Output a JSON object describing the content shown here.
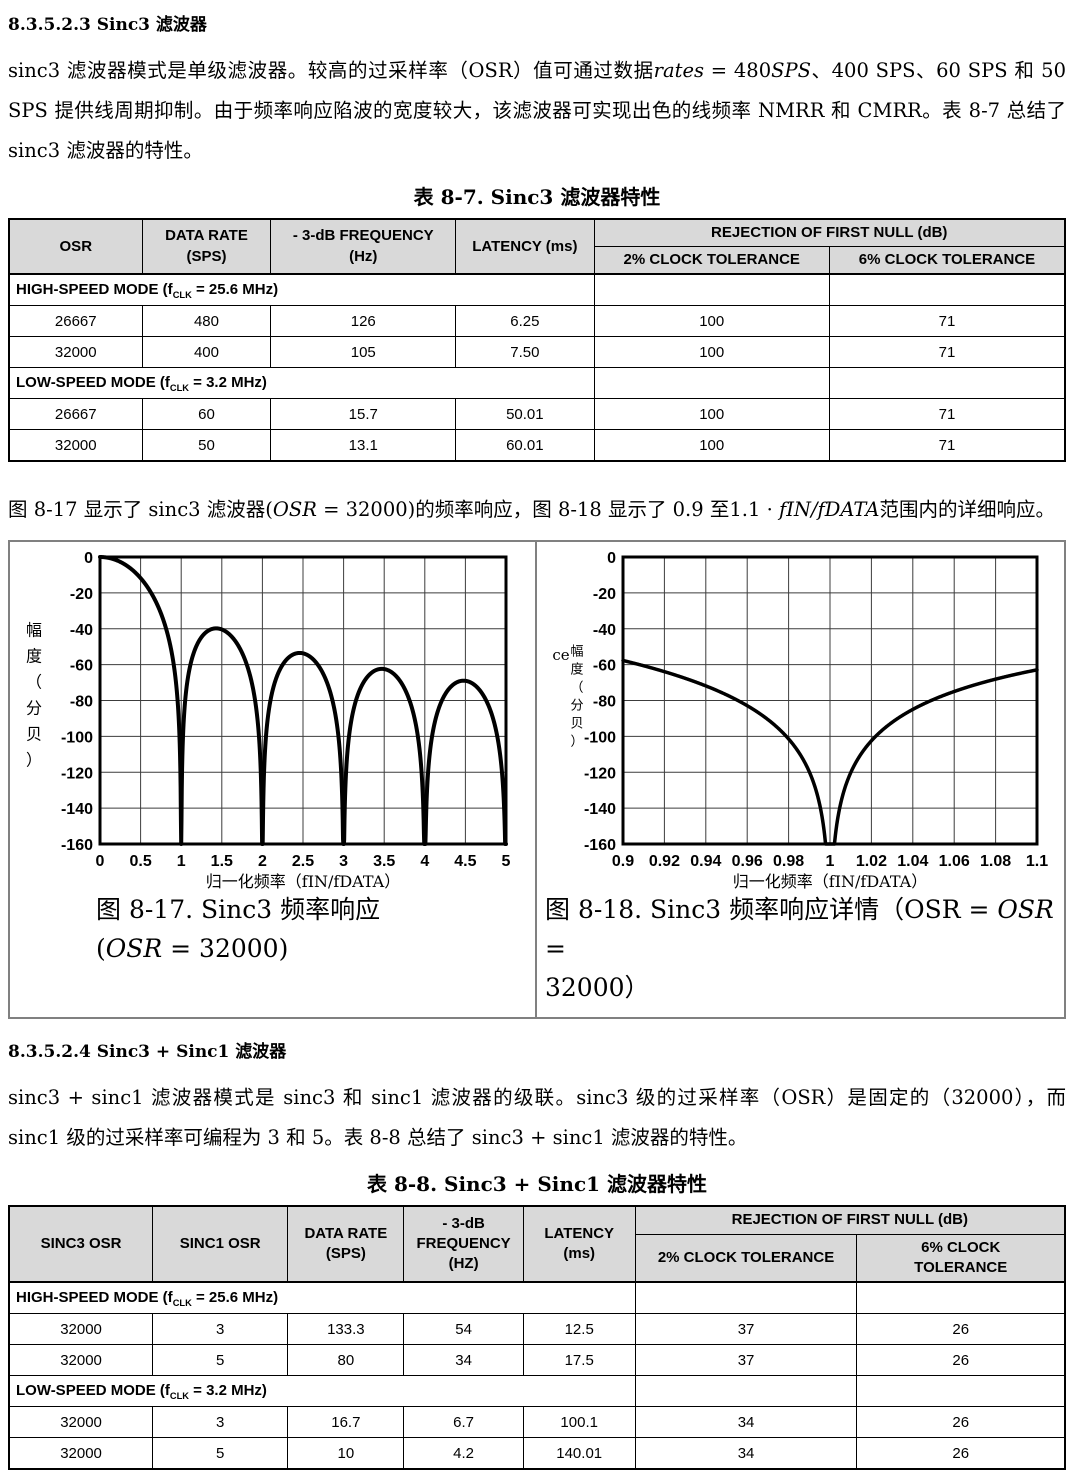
{
  "section1": {
    "heading": "8.3.5.2.3 Sinc3 滤波器",
    "para_runs": [
      {
        "t": "sinc3 滤波器模式是单级滤波器。较高的过采样率（OSR）值可通过数据"
      },
      {
        "t": "rates",
        "style": "i"
      },
      {
        "t": " = 480"
      },
      {
        "t": "SPS",
        "style": "i"
      },
      {
        "t": "、400 SPS、60 SPS 和 50 SPS 提供线周期抑制。由于频率响应陷波的宽度较大，该滤波器可实现出色的线频率 NMRR 和 CMRR。表 8-7 总结了 sinc3 滤波器的特性。"
      }
    ]
  },
  "section2": {
    "heading": "8.3.5.2.4 Sinc3 + Sinc1 滤波器",
    "para_runs": [
      {
        "t": "sinc3 + sinc1 滤波器模式是 sinc3 和 sinc1 滤波器的级联。sinc3 级的过采样率（OSR）是固定的（32000），而 sinc1 级的过采样率可编程为 3 和 5。表 8-8 总结了 sinc3 + sinc1 滤波器的特性。"
      }
    ]
  },
  "figure_para_runs": [
    {
      "t": "图 8-17 显示了 sinc3 滤波器("
    },
    {
      "t": "OSR",
      "style": "i"
    },
    {
      "t": " = 32000)的频率响应，图 8-18 显示了 0.9 至1.1 · "
    },
    {
      "t": "fIN/fDATA",
      "style": "i"
    },
    {
      "t": "范围内的详细响应。"
    }
  ],
  "tables": {
    "t87": {
      "title": "表 8-7. Sinc3 滤波器特性",
      "headers": {
        "osr": [
          "OSR"
        ],
        "rate": [
          "DATA RATE",
          "(SPS)"
        ],
        "freq": [
          "- 3-dB FREQUENCY",
          "(Hz)"
        ],
        "latency": [
          "LATENCY (ms)"
        ],
        "rejection": "REJECTION OF FIRST NULL (dB)",
        "tol2": [
          "2% CLOCK TOLERANCE"
        ],
        "tol6": [
          "6% CLOCK TOLERANCE"
        ]
      },
      "sections": [
        {
          "label_runs": [
            {
              "t": "HIGH-SPEED MODE (f"
            },
            {
              "t": "CLK",
              "style": "sub"
            },
            {
              "t": " = 25.6 MHz)"
            }
          ],
          "rows": [
            [
              "26667",
              "480",
              "126",
              "6.25",
              "100",
              "71"
            ],
            [
              "32000",
              "400",
              "105",
              "7.50",
              "100",
              "71"
            ]
          ]
        },
        {
          "label_runs": [
            {
              "t": "LOW-SPEED MODE (f"
            },
            {
              "t": "CLK",
              "style": "sub"
            },
            {
              "t": " = 3.2 MHz)"
            }
          ],
          "rows": [
            [
              "26667",
              "60",
              "15.7",
              "50.01",
              "100",
              "71"
            ],
            [
              "32000",
              "50",
              "13.1",
              "60.01",
              "100",
              "71"
            ]
          ]
        }
      ]
    },
    "t88": {
      "title": "表 8-8. Sinc3 + Sinc1 滤波器特性",
      "headers": {
        "sinc3osr": [
          "SINC3 OSR"
        ],
        "sinc1osr": [
          "SINC1 OSR"
        ],
        "rate": [
          "DATA RATE",
          "(SPS)"
        ],
        "freq": [
          "- 3-dB",
          "FREQUENCY",
          "(HZ)"
        ],
        "latency": [
          "LATENCY",
          "(ms)"
        ],
        "rejection": "REJECTION OF FIRST NULL (dB)",
        "tol2": [
          "2% CLOCK TOLERANCE"
        ],
        "tol6": [
          "6% CLOCK",
          "TOLERANCE"
        ]
      },
      "sections": [
        {
          "label_runs": [
            {
              "t": "HIGH-SPEED MODE (f"
            },
            {
              "t": "CLK",
              "style": "sub"
            },
            {
              "t": " = 25.6 MHz)"
            }
          ],
          "rows": [
            [
              "32000",
              "3",
              "133.3",
              "54",
              "12.5",
              "37",
              "26"
            ],
            [
              "32000",
              "5",
              "80",
              "34",
              "17.5",
              "37",
              "26"
            ]
          ]
        },
        {
          "label_runs": [
            {
              "t": "LOW-SPEED MODE (f"
            },
            {
              "t": "CLK",
              "style": "sub"
            },
            {
              "t": " = 3.2 MHz)"
            }
          ],
          "rows": [
            [
              "32000",
              "3",
              "16.7",
              "6.7",
              "100.1",
              "34",
              "26"
            ],
            [
              "32000",
              "5",
              "10",
              "4.2",
              "140.01",
              "34",
              "26"
            ]
          ]
        }
      ]
    }
  },
  "figures": {
    "f17": {
      "caption_runs": [
        {
          "t": "图 8-17. Sinc3 频率响应"
        },
        {
          "br": true
        },
        {
          "t": "("
        },
        {
          "t": "OSR",
          "style": "i"
        },
        {
          "t": " = 32000)"
        }
      ]
    },
    "f18": {
      "caption_runs": [
        {
          "t": "图 8-18. Sinc3 频率响应详情（OSR = "
        },
        {
          "t": "OSR",
          "style": "i"
        },
        {
          "t": " ="
        },
        {
          "br": true
        },
        {
          "t": "32000）"
        }
      ]
    }
  },
  "chart_data": [
    {
      "id": "fig-8-17",
      "type": "line",
      "title": "图 8-17. Sinc3 频率响应 (OSR = 32000)",
      "xlabel": "归一化频率（fIN/fDATA）",
      "ylabel": "幅度（分贝）",
      "xlim": [
        0,
        5
      ],
      "ylim": [
        -160,
        0
      ],
      "xticks": [
        0,
        0.5,
        1,
        1.5,
        2,
        2.5,
        3,
        3.5,
        4,
        4.5,
        5
      ],
      "xtick_labels": [
        "0",
        "0.5",
        "1",
        "1.5",
        "2",
        "2.5",
        "3",
        "3.5",
        "4",
        "4.5",
        "5"
      ],
      "yticks": [
        0,
        -20,
        -40,
        -60,
        -80,
        -100,
        -120,
        -140,
        -160
      ],
      "ytick_labels": [
        "0",
        "-20",
        "-40",
        "-60",
        "-80",
        "-100",
        "-120",
        "-140",
        "-160"
      ],
      "grid": true,
      "legend": "none",
      "curve": {
        "type": "sinc_filter_db",
        "order": 3,
        "formula": "dB = 60*log10(|sin(pi*x)/(pi*x)|)",
        "clip_floor_dB": -160
      },
      "nulls_x": [
        1,
        2,
        3,
        4,
        5
      ],
      "sidelobe_peaks": [
        {
          "x": 1.44,
          "y": -39.8
        },
        {
          "x": 2.46,
          "y": -53.6
        },
        {
          "x": 3.47,
          "y": -62.4
        },
        {
          "x": 4.48,
          "y": -69.0
        }
      ],
      "start_point": {
        "x": 0,
        "y": 0
      }
    },
    {
      "id": "fig-8-18",
      "type": "line",
      "title": "图 8-18. Sinc3 频率响应详情（OSR = OSR = 32000）",
      "xlabel": "归一化频率（fIN/fDATA）",
      "ylabel": "幅度（分贝）",
      "stray_label": "ce",
      "xlim": [
        0.9,
        1.1
      ],
      "ylim": [
        -160,
        0
      ],
      "xticks": [
        0.9,
        0.92,
        0.94,
        0.96,
        0.98,
        1,
        1.02,
        1.04,
        1.06,
        1.08,
        1.1
      ],
      "xtick_labels": [
        "0.9",
        "0.92",
        "0.94",
        "0.96",
        "0.98",
        "1",
        "1.02",
        "1.04",
        "1.06",
        "1.08",
        "1.1"
      ],
      "yticks": [
        0,
        -20,
        -40,
        -60,
        -80,
        -100,
        -120,
        -140,
        -160
      ],
      "ytick_labels": [
        "0",
        "-20",
        "-40",
        "-60",
        "-80",
        "-100",
        "-120",
        "-140",
        "-160"
      ],
      "grid": true,
      "legend": "none",
      "curve": {
        "type": "sinc_filter_db",
        "order": 3,
        "formula": "dB = 60*log10(|sin(pi*x)/(pi*x)|)",
        "clip_floor_dB": -160
      },
      "nulls_x": [
        1
      ],
      "endpoints": [
        {
          "x": 0.9,
          "y": -57.6
        },
        {
          "x": 1.1,
          "y": -63.0
        }
      ]
    }
  ]
}
